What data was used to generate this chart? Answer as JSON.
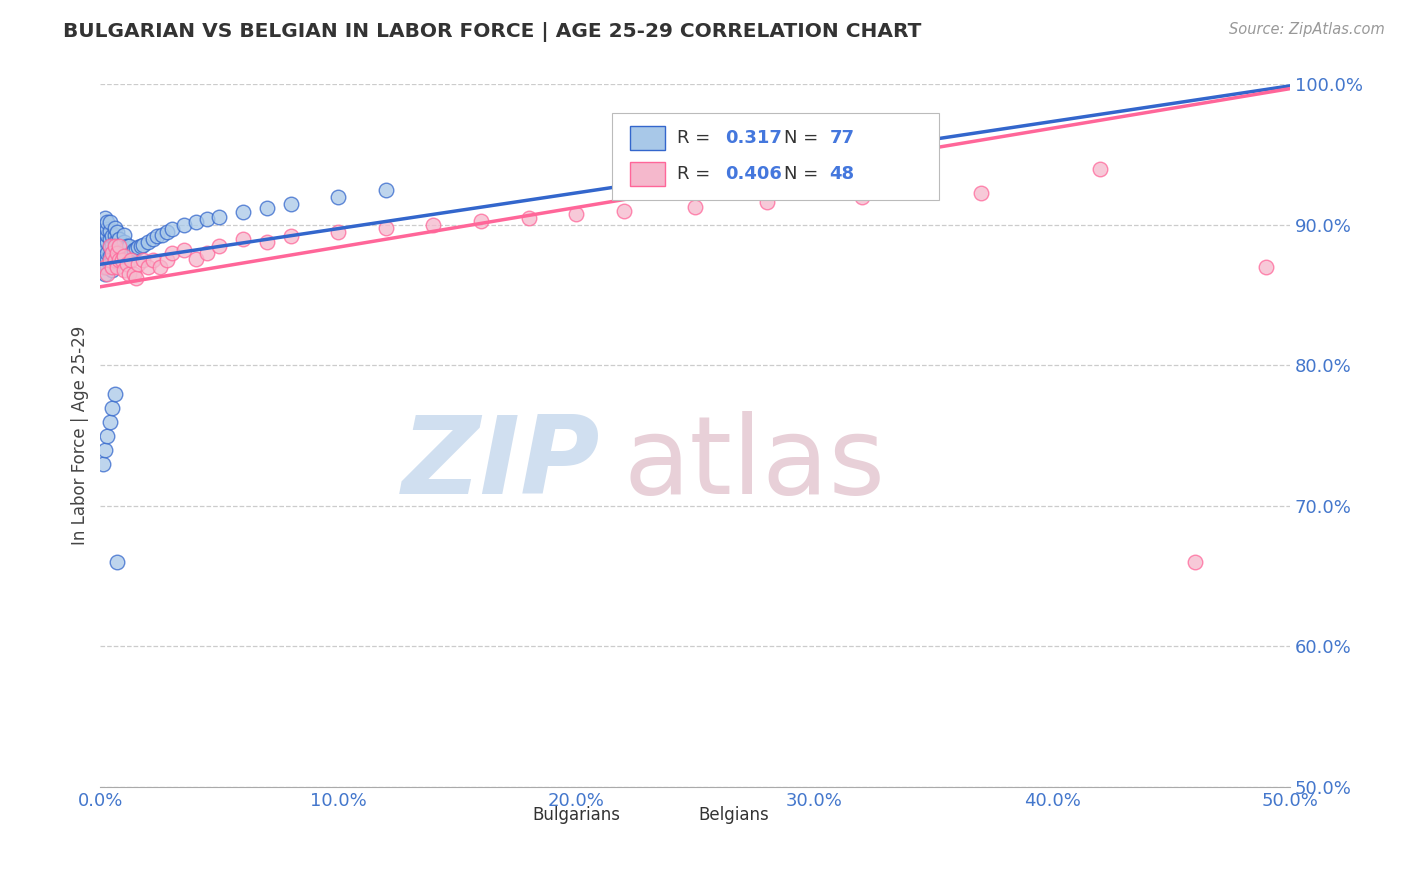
{
  "title": "BULGARIAN VS BELGIAN IN LABOR FORCE | AGE 25-29 CORRELATION CHART",
  "source_text": "Source: ZipAtlas.com",
  "ylabel": "In Labor Force | Age 25-29",
  "xlim": [
    0.0,
    0.5
  ],
  "ylim": [
    0.5,
    1.0
  ],
  "xtick_vals": [
    0.0,
    0.1,
    0.2,
    0.3,
    0.4,
    0.5
  ],
  "ytick_vals": [
    0.5,
    0.6,
    0.7,
    0.8,
    0.9,
    1.0
  ],
  "xtick_labels": [
    "0.0%",
    "10.0%",
    "20.0%",
    "30.0%",
    "40.0%",
    "50.0%"
  ],
  "ytick_labels": [
    "50.0%",
    "60.0%",
    "70.0%",
    "80.0%",
    "90.0%",
    "100.0%"
  ],
  "bulgarian_color": "#A8C8E8",
  "belgian_color": "#F5B8CC",
  "trend_bulgarian_color": "#3366CC",
  "trend_belgian_color": "#FF6699",
  "R_bulgarian": 0.317,
  "N_bulgarian": 77,
  "R_belgian": 0.406,
  "N_belgian": 48,
  "legend_r_n_color": "#4477DD",
  "watermark_zip_color": "#D0DFF0",
  "watermark_atlas_color": "#E8D0D8",
  "bulgarian_x": [
    0.001,
    0.001,
    0.001,
    0.002,
    0.002,
    0.002,
    0.002,
    0.002,
    0.002,
    0.003,
    0.003,
    0.003,
    0.003,
    0.003,
    0.003,
    0.003,
    0.004,
    0.004,
    0.004,
    0.004,
    0.004,
    0.004,
    0.005,
    0.005,
    0.005,
    0.005,
    0.005,
    0.006,
    0.006,
    0.006,
    0.006,
    0.006,
    0.007,
    0.007,
    0.007,
    0.007,
    0.008,
    0.008,
    0.008,
    0.009,
    0.009,
    0.01,
    0.01,
    0.01,
    0.01,
    0.011,
    0.011,
    0.012,
    0.012,
    0.013,
    0.014,
    0.015,
    0.016,
    0.017,
    0.018,
    0.02,
    0.022,
    0.024,
    0.026,
    0.028,
    0.03,
    0.035,
    0.04,
    0.045,
    0.05,
    0.06,
    0.07,
    0.08,
    0.1,
    0.12,
    0.001,
    0.002,
    0.003,
    0.004,
    0.005,
    0.006,
    0.007
  ],
  "bulgarian_y": [
    0.87,
    0.88,
    0.895,
    0.865,
    0.875,
    0.885,
    0.895,
    0.9,
    0.905,
    0.87,
    0.875,
    0.88,
    0.888,
    0.893,
    0.897,
    0.902,
    0.872,
    0.878,
    0.884,
    0.89,
    0.896,
    0.902,
    0.868,
    0.874,
    0.88,
    0.886,
    0.892,
    0.875,
    0.882,
    0.888,
    0.893,
    0.898,
    0.876,
    0.883,
    0.889,
    0.895,
    0.877,
    0.884,
    0.89,
    0.878,
    0.884,
    0.878,
    0.883,
    0.888,
    0.893,
    0.879,
    0.885,
    0.879,
    0.885,
    0.88,
    0.882,
    0.883,
    0.884,
    0.885,
    0.886,
    0.888,
    0.89,
    0.892,
    0.893,
    0.895,
    0.897,
    0.9,
    0.902,
    0.904,
    0.906,
    0.909,
    0.912,
    0.915,
    0.92,
    0.925,
    0.73,
    0.74,
    0.75,
    0.76,
    0.77,
    0.78,
    0.66
  ],
  "belgian_x": [
    0.002,
    0.003,
    0.004,
    0.004,
    0.005,
    0.005,
    0.006,
    0.006,
    0.007,
    0.007,
    0.008,
    0.008,
    0.009,
    0.01,
    0.01,
    0.011,
    0.012,
    0.013,
    0.014,
    0.015,
    0.016,
    0.018,
    0.02,
    0.022,
    0.025,
    0.028,
    0.03,
    0.035,
    0.04,
    0.045,
    0.05,
    0.06,
    0.07,
    0.08,
    0.1,
    0.12,
    0.14,
    0.16,
    0.18,
    0.2,
    0.22,
    0.25,
    0.28,
    0.32,
    0.37,
    0.42,
    0.46,
    0.49
  ],
  "belgian_y": [
    0.87,
    0.865,
    0.875,
    0.885,
    0.87,
    0.88,
    0.875,
    0.885,
    0.87,
    0.88,
    0.875,
    0.885,
    0.875,
    0.868,
    0.878,
    0.872,
    0.865,
    0.875,
    0.865,
    0.862,
    0.872,
    0.875,
    0.87,
    0.875,
    0.87,
    0.875,
    0.88,
    0.882,
    0.876,
    0.88,
    0.885,
    0.89,
    0.888,
    0.892,
    0.895,
    0.898,
    0.9,
    0.903,
    0.905,
    0.908,
    0.91,
    0.913,
    0.916,
    0.92,
    0.923,
    0.94,
    0.66,
    0.87
  ],
  "trend_bg_x0": 0.0,
  "trend_bg_x1": 0.5,
  "trend_bg_y0": 0.872,
  "trend_bg_y1": 0.999,
  "trend_be_x0": 0.0,
  "trend_be_x1": 0.5,
  "trend_be_y0": 0.856,
  "trend_be_y1": 0.997
}
